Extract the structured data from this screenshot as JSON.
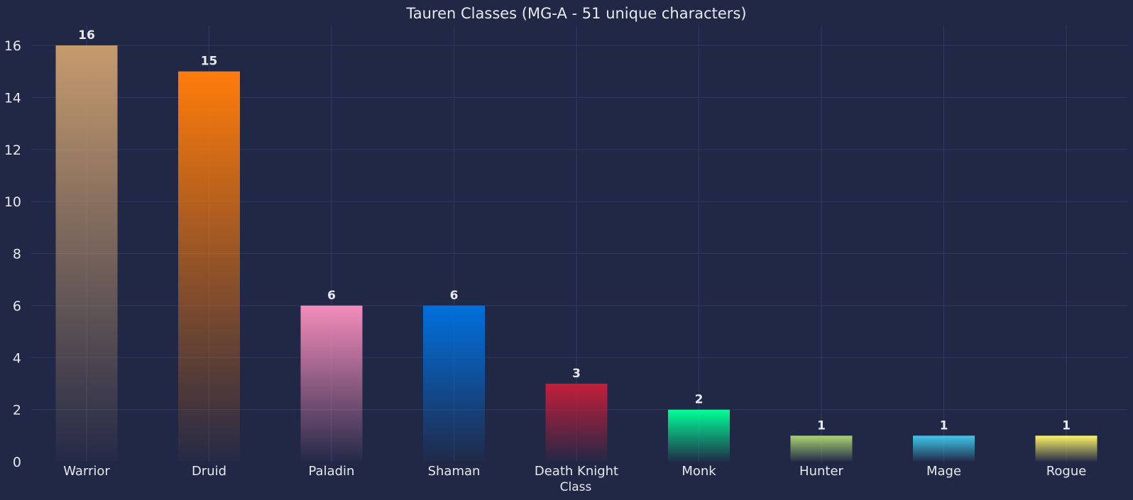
{
  "chart_data": {
    "type": "bar",
    "title": "Tauren Classes (MG-A - 51 unique characters)",
    "xlabel": "Class",
    "ylabel": "",
    "ylim": [
      0,
      16.7
    ],
    "yticks": [
      0,
      2,
      4,
      6,
      8,
      10,
      12,
      14,
      16
    ],
    "grid": true,
    "categories": [
      "Warrior",
      "Druid",
      "Paladin",
      "Shaman",
      "Death Knight",
      "Monk",
      "Hunter",
      "Mage",
      "Rogue"
    ],
    "values": [
      16,
      15,
      6,
      6,
      3,
      2,
      1,
      1,
      1
    ],
    "data_labels": [
      "16",
      "15",
      "6",
      "6",
      "3",
      "2",
      "1",
      "1",
      "1"
    ],
    "colors": [
      "#c69b6d",
      "#ff7c0a",
      "#f48cba",
      "#0070dd",
      "#c41e3a",
      "#00ff98",
      "#aad372",
      "#3fc7eb",
      "#fff468"
    ],
    "background": "#212846"
  }
}
